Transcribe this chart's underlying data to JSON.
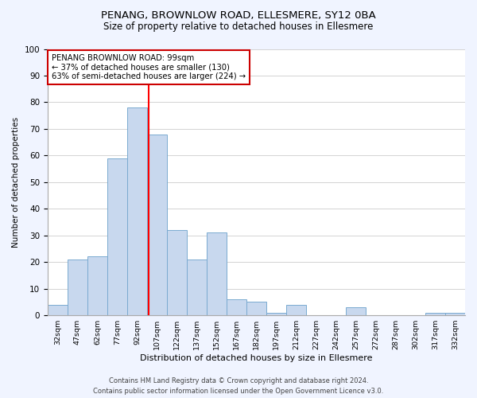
{
  "title": "PENANG, BROWNLOW ROAD, ELLESMERE, SY12 0BA",
  "subtitle": "Size of property relative to detached houses in Ellesmere",
  "xlabel": "Distribution of detached houses by size in Ellesmere",
  "ylabel": "Number of detached properties",
  "bar_labels": [
    "32sqm",
    "47sqm",
    "62sqm",
    "77sqm",
    "92sqm",
    "107sqm",
    "122sqm",
    "137sqm",
    "152sqm",
    "167sqm",
    "182sqm",
    "197sqm",
    "212sqm",
    "227sqm",
    "242sqm",
    "257sqm",
    "272sqm",
    "287sqm",
    "302sqm",
    "317sqm",
    "332sqm"
  ],
  "bar_values": [
    4,
    21,
    22,
    59,
    78,
    68,
    32,
    21,
    31,
    6,
    5,
    1,
    4,
    0,
    0,
    3,
    0,
    0,
    0,
    1,
    1
  ],
  "bar_color": "#c8d8ee",
  "bar_edgecolor": "#7aaad0",
  "ylim": [
    0,
    100
  ],
  "yticks": [
    0,
    10,
    20,
    30,
    40,
    50,
    60,
    70,
    80,
    90,
    100
  ],
  "vline_x": 4.6,
  "vline_color": "red",
  "annotation_title": "PENANG BROWNLOW ROAD: 99sqm",
  "annotation_line1": "← 37% of detached houses are smaller (130)",
  "annotation_line2": "63% of semi-detached houses are larger (224) →",
  "annotation_box_facecolor": "white",
  "annotation_box_edgecolor": "#cc0000",
  "footer_line1": "Contains HM Land Registry data © Crown copyright and database right 2024.",
  "footer_line2": "Contains public sector information licensed under the Open Government Licence v3.0.",
  "background_color": "#f0f4ff",
  "plot_background": "white"
}
